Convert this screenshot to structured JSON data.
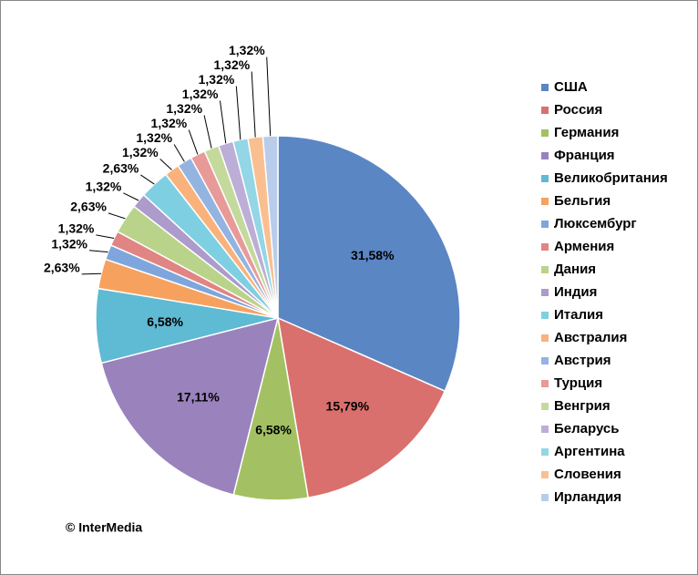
{
  "chart_data": {
    "type": "pie",
    "categories": [
      "США",
      "Россия",
      "Германия",
      "Франция",
      "Великобритания",
      "Бельгия",
      "Люксембург",
      "Армения",
      "Дания",
      "Индия",
      "Италия",
      "Австралия",
      "Австрия",
      "Турция",
      "Венгрия",
      "Беларусь",
      "Аргентина",
      "Словения",
      "Ирландия"
    ],
    "values": [
      31.58,
      15.79,
      6.58,
      17.11,
      6.58,
      2.63,
      1.32,
      1.32,
      2.63,
      1.32,
      2.63,
      1.32,
      1.32,
      1.32,
      1.32,
      1.32,
      1.32,
      1.32,
      1.32
    ],
    "value_labels": [
      "31,58%",
      "15,79%",
      "6,58%",
      "17,11%",
      "6,58%",
      "2,63%",
      "1,32%",
      "1,32%",
      "2,63%",
      "1,32%",
      "2,63%",
      "1,32%",
      "1,32%",
      "1,32%",
      "1,32%",
      "1,32%",
      "1,32%",
      "1,32%",
      "1,32%"
    ],
    "colors": [
      "#5b86c4",
      "#d9706d",
      "#a3c162",
      "#9a82bd",
      "#5fbad3",
      "#f7a15e",
      "#7ea6dc",
      "#e08583",
      "#b9d48a",
      "#ad9bcc",
      "#7fcfe2",
      "#f9b27c",
      "#93b4e0",
      "#e89a98",
      "#c4da9c",
      "#bcaed6",
      "#93d6e6",
      "#fabf91",
      "#b9cdea"
    ],
    "annotation": "© InterMedia"
  }
}
